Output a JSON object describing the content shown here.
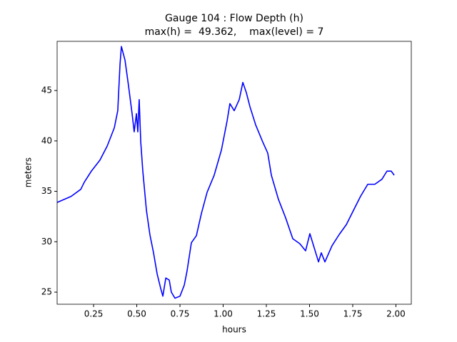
{
  "chart_data": {
    "type": "line",
    "title": "Gauge 104 : Flow Depth (h)",
    "subtitle": "max(h) =  49.362,    max(level) = 7",
    "xlabel": "hours",
    "ylabel": "meters",
    "color": "#0000ff",
    "x": [
      0.039,
      0.12,
      0.176,
      0.196,
      0.237,
      0.287,
      0.329,
      0.37,
      0.39,
      0.403,
      0.411,
      0.432,
      0.452,
      0.473,
      0.485,
      0.498,
      0.506,
      0.514,
      0.523,
      0.535,
      0.556,
      0.576,
      0.597,
      0.618,
      0.638,
      0.651,
      0.668,
      0.688,
      0.7,
      0.721,
      0.75,
      0.775,
      0.791,
      0.816,
      0.845,
      0.874,
      0.907,
      0.948,
      0.99,
      1.023,
      1.039,
      1.064,
      1.093,
      1.114,
      1.134,
      1.155,
      1.188,
      1.229,
      1.258,
      1.279,
      1.32,
      1.361,
      1.403,
      1.444,
      1.477,
      1.502,
      1.527,
      1.552,
      1.568,
      1.589,
      1.63,
      1.671,
      1.713,
      1.754,
      1.795,
      1.837,
      1.878,
      1.919,
      1.948,
      1.973,
      1.99
    ],
    "values": [
      33.9,
      34.5,
      35.2,
      35.9,
      37.0,
      38.1,
      39.5,
      41.3,
      43.0,
      47.6,
      49.36,
      48.0,
      45.5,
      42.7,
      40.9,
      42.7,
      40.9,
      44.1,
      39.9,
      37.0,
      33.1,
      30.7,
      28.9,
      26.8,
      25.4,
      24.6,
      26.4,
      26.2,
      25.0,
      24.4,
      24.6,
      25.7,
      27.1,
      29.9,
      30.6,
      32.8,
      34.9,
      36.6,
      39.1,
      42.0,
      43.7,
      43.0,
      44.1,
      45.8,
      44.8,
      43.4,
      41.6,
      39.9,
      38.8,
      36.6,
      34.2,
      32.4,
      30.3,
      29.8,
      29.1,
      30.8,
      29.4,
      28.0,
      28.9,
      28.0,
      29.6,
      30.7,
      31.7,
      33.1,
      34.5,
      35.7,
      35.7,
      36.2,
      37.0,
      37.0,
      36.6
    ],
    "xlim": [
      0.039,
      2.089
    ],
    "ylim": [
      23.8,
      49.88
    ],
    "xticks": [
      0.25,
      {
        "value": 0.5,
        "label": "0.50"
      },
      0.75,
      {
        "value": 1,
        "label": "1.00"
      },
      1.25,
      {
        "value": 1.5,
        "label": "1.50"
      },
      1.75,
      {
        "value": 2,
        "label": "2.00"
      }
    ],
    "yticks": [
      25,
      30,
      35,
      40,
      45
    ],
    "grid": false
  }
}
